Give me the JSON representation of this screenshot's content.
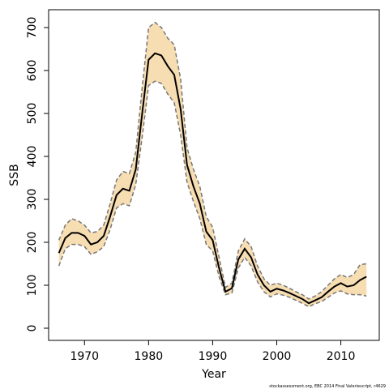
{
  "chart_data": {
    "type": "line",
    "xlabel": "Year",
    "ylabel": "SSB",
    "footnote": "stockassessment.org, EBC 2014 Final Valeriescript, r4629",
    "x": [
      1966,
      1967,
      1968,
      1969,
      1970,
      1971,
      1972,
      1973,
      1974,
      1975,
      1976,
      1977,
      1978,
      1979,
      1980,
      1981,
      1982,
      1983,
      1984,
      1985,
      1986,
      1987,
      1988,
      1989,
      1990,
      1991,
      1992,
      1993,
      1994,
      1995,
      1996,
      1997,
      1998,
      1999,
      2000,
      2001,
      2002,
      2003,
      2004,
      2005,
      2006,
      2007,
      2008,
      2009,
      2010,
      2011,
      2012,
      2013,
      2014
    ],
    "values": [
      175,
      210,
      222,
      222,
      215,
      195,
      200,
      215,
      260,
      310,
      325,
      320,
      370,
      500,
      625,
      640,
      635,
      610,
      590,
      510,
      380,
      330,
      290,
      225,
      205,
      140,
      85,
      93,
      160,
      185,
      165,
      125,
      100,
      85,
      92,
      88,
      82,
      75,
      68,
      58,
      65,
      72,
      85,
      97,
      105,
      97,
      100,
      112,
      120
    ],
    "upper": [
      205,
      240,
      255,
      250,
      240,
      222,
      225,
      240,
      290,
      345,
      365,
      360,
      410,
      560,
      700,
      712,
      700,
      675,
      660,
      580,
      420,
      370,
      330,
      260,
      235,
      165,
      95,
      105,
      180,
      208,
      190,
      145,
      115,
      100,
      105,
      100,
      93,
      85,
      78,
      68,
      75,
      85,
      100,
      115,
      125,
      118,
      125,
      148,
      150
    ],
    "lower": [
      145,
      185,
      195,
      195,
      190,
      172,
      178,
      190,
      230,
      280,
      290,
      285,
      335,
      445,
      565,
      575,
      570,
      545,
      525,
      450,
      340,
      295,
      255,
      195,
      180,
      120,
      78,
      82,
      140,
      165,
      145,
      108,
      85,
      73,
      80,
      77,
      72,
      65,
      58,
      50,
      57,
      62,
      72,
      82,
      87,
      80,
      78,
      78,
      75
    ],
    "color": "#000000",
    "band_color": "#f7ddb2",
    "bound_color": "#777777",
    "xlim": [
      1964.4,
      2016.0
    ],
    "xticks": [
      1970,
      1980,
      1990,
      2000,
      2010
    ],
    "ylim": [
      -28.3,
      741.5
    ],
    "yticks": [
      0,
      100,
      200,
      300,
      400,
      500,
      600,
      700
    ]
  }
}
